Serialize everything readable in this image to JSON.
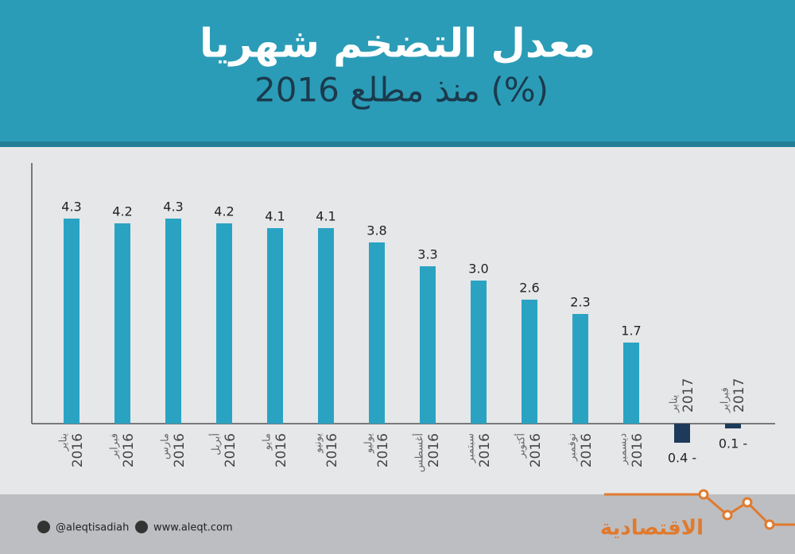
{
  "chart_data": {
    "type": "bar",
    "title": "معدل التضخم شهريا",
    "subtitle": "منذ مطلع 2016 (%)",
    "categories": [
      "يناير",
      "فبراير",
      "مارس",
      "أبريل",
      "مايو",
      "يونيو",
      "يوليو",
      "أغسطس",
      "سبتمبر",
      "أكتوبر",
      "نوفمبر",
      "ديسمبر",
      "يناير",
      "فبراير"
    ],
    "category_years": [
      "2016",
      "2016",
      "2016",
      "2016",
      "2016",
      "2016",
      "2016",
      "2016",
      "2016",
      "2016",
      "2016",
      "2016",
      "2017",
      "2017"
    ],
    "values": [
      4.3,
      4.2,
      4.3,
      4.2,
      4.1,
      4.1,
      3.8,
      3.3,
      3.0,
      2.6,
      2.3,
      1.7,
      -0.4,
      -0.1
    ],
    "value_labels": [
      "4.3",
      "4.2",
      "4.3",
      "4.2",
      "4.1",
      "4.1",
      "3.8",
      "3.3",
      "3.0",
      "2.6",
      "2.3",
      "1.7",
      "0.4 -",
      "0.1 -"
    ],
    "color": "#2aa3c3",
    "negative_color": "#1e3a5a",
    "ylim": [
      -0.5,
      5.4
    ],
    "footer": {
      "twitter": "@aleqtisadiah",
      "website": "www.aleqt.com",
      "logo": "الاقتصادية"
    }
  }
}
